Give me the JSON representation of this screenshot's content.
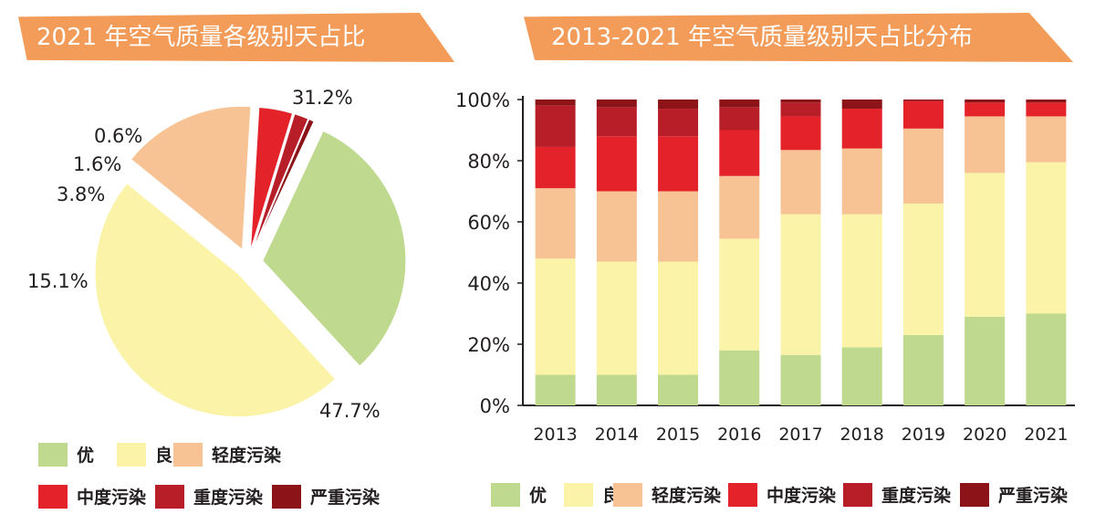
{
  "colors": {
    "you": "#bfd98e",
    "liang": "#faf3a8",
    "qingdu": "#f7c394",
    "zhongdu": "#e42229",
    "zhongdu2": "#b81e28",
    "yanzhong": "#8c1419",
    "banner": "#f39c5a"
  },
  "legend_items": [
    {
      "name": "优",
      "color": "#bfd98e"
    },
    {
      "name": "良",
      "color": "#faf3a8"
    },
    {
      "name": "轻度污染",
      "color": "#f7c394"
    },
    {
      "name": "中度污染",
      "color": "#e42229"
    },
    {
      "name": "重度污染",
      "color": "#b81e28"
    },
    {
      "name": "严重污染",
      "color": "#8c1419"
    }
  ],
  "chart_data": [
    {
      "type": "pie",
      "title": "2021 年空气质量各级别天占比",
      "labels": [
        "优",
        "良",
        "轻度污染",
        "中度污染",
        "重度污染",
        "严重污染"
      ],
      "values": [
        31.2,
        47.7,
        15.1,
        3.8,
        1.6,
        0.6
      ],
      "value_labels": [
        "31.2%",
        "47.7%",
        "15.1%",
        "3.8%",
        "1.6%",
        "0.6%"
      ],
      "legend_position": "bottom"
    },
    {
      "type": "bar",
      "stacked": true,
      "title": "2013-2021 年空气质量级别天占比分布",
      "categories": [
        "2013",
        "2014",
        "2015",
        "2016",
        "2017",
        "2018",
        "2019",
        "2020",
        "2021"
      ],
      "ylim": [
        0,
        100
      ],
      "yticks": [
        "0%",
        "20%",
        "40%",
        "60%",
        "80%",
        "100%"
      ],
      "series": [
        {
          "name": "优",
          "values": [
            10,
            10,
            10,
            18,
            16.5,
            19,
            23,
            29,
            30
          ]
        },
        {
          "name": "良",
          "values": [
            38,
            37,
            37,
            36.5,
            46,
            43.5,
            43,
            47,
            49.5
          ]
        },
        {
          "name": "轻度污染",
          "values": [
            23,
            23,
            23,
            20.5,
            21,
            21.5,
            24.5,
            18.5,
            15
          ]
        },
        {
          "name": "中度污染",
          "values": [
            13.5,
            18,
            18,
            15,
            11,
            13,
            9,
            4.5,
            4.5
          ]
        },
        {
          "name": "重度污染",
          "values": [
            13.5,
            9.5,
            9,
            7.5,
            4.5,
            0,
            0,
            0,
            0
          ]
        },
        {
          "name": "严重污染",
          "values": [
            2,
            2.5,
            3,
            2.5,
            1,
            3,
            0.5,
            1,
            1
          ]
        }
      ],
      "legend_position": "bottom"
    }
  ]
}
